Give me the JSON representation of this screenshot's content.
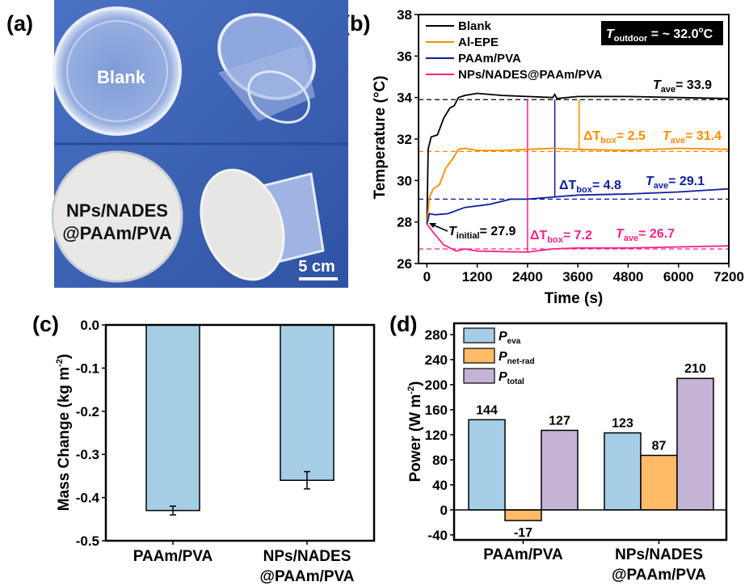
{
  "panel_labels": {
    "a": "(a)",
    "b": "(b)",
    "c": "(c)",
    "d": "(d)"
  },
  "photo": {
    "label_blank": "Blank",
    "label_coated_1": "NPs/NADES",
    "label_coated_2": "@PAAm/PVA",
    "scale_bar": "5 cm",
    "background_color": "#3a5fb4"
  },
  "chart_data": [
    {
      "panel": "b",
      "type": "line",
      "xlabel": "Time (s)",
      "ylabel": "Temperature (°C)",
      "xlim": [
        -200,
        7200
      ],
      "ylim": [
        26,
        38
      ],
      "xticks": [
        0,
        1200,
        2400,
        3600,
        4800,
        6000,
        7200
      ],
      "yticks": [
        26,
        28,
        30,
        32,
        34,
        36,
        38
      ],
      "legend_position": "top-left",
      "inset_box": {
        "T": "T",
        "sub": "outdoor",
        "text": " = ~ 32.0",
        "sup": "o",
        "unit": "C"
      },
      "series": [
        {
          "name": "Blank",
          "color": "#000000",
          "x": [
            0,
            30,
            100,
            250,
            400,
            550,
            650,
            750,
            900,
            1200,
            1800,
            2400,
            3000,
            3050,
            3100,
            3600,
            4800,
            6000,
            7200
          ],
          "y": [
            27.9,
            31.5,
            32.1,
            32.2,
            33.0,
            33.5,
            33.6,
            34.0,
            34.1,
            34.2,
            34.1,
            34.05,
            34.0,
            34.15,
            33.95,
            34.05,
            34.05,
            34.0,
            33.95
          ]
        },
        {
          "name": "Al-EPE",
          "color": "#ff8c00",
          "x": [
            0,
            60,
            150,
            300,
            450,
            600,
            750,
            900,
            1200,
            1800,
            2400,
            3000,
            3600,
            4800,
            6000,
            7200
          ],
          "y": [
            27.9,
            29.2,
            29.6,
            29.8,
            30.6,
            31.0,
            31.5,
            31.55,
            31.45,
            31.45,
            31.5,
            31.55,
            31.5,
            31.45,
            31.55,
            31.5
          ]
        },
        {
          "name": "PAAm/PVA",
          "color": "#0b1fa0",
          "x": [
            0,
            60,
            200,
            500,
            900,
            1500,
            2000,
            2400,
            3000,
            3600,
            4800,
            6000,
            7200
          ],
          "y": [
            27.9,
            28.4,
            28.35,
            28.4,
            28.7,
            28.85,
            29.1,
            29.1,
            29.2,
            29.3,
            29.35,
            29.45,
            29.6
          ]
        },
        {
          "name": "NPs/NADES@PAAm/PVA",
          "color": "#ff1f8a",
          "x": [
            0,
            150,
            400,
            700,
            900,
            1200,
            2400,
            3000,
            3600,
            4800,
            6000,
            7200
          ],
          "y": [
            27.9,
            27.5,
            26.9,
            26.6,
            26.7,
            26.6,
            26.55,
            26.7,
            26.75,
            26.75,
            26.8,
            26.85
          ]
        }
      ],
      "average_lines": [
        {
          "series": "Blank",
          "value": 33.9,
          "color": "#000000"
        },
        {
          "series": "Al-EPE",
          "value": 31.4,
          "color": "#ff8c00"
        },
        {
          "series": "PAAm/PVA",
          "value": 29.1,
          "color": "#0b1fa0"
        },
        {
          "series": "NPs/NADES@PAAm/PVA",
          "value": 26.7,
          "color": "#ff1f8a"
        }
      ],
      "delta_markers": [
        {
          "x": 3630,
          "from": 31.45,
          "to": 33.9,
          "color": "#ff8c00"
        },
        {
          "x": 3050,
          "from": 29.2,
          "to": 33.9,
          "color": "#0b1fa0"
        },
        {
          "x": 2400,
          "from": 26.55,
          "to": 33.9,
          "color": "#ff1f8a"
        }
      ],
      "annotations": {
        "blank_ave": {
          "T": "T",
          "sub": "ave",
          "text": "= 33.9"
        },
        "epe_delta": {
          "T": "ΔT",
          "sub": "box",
          "text": "= 2.5"
        },
        "epe_ave": {
          "T": "T",
          "sub": "ave",
          "text": "= 31.4"
        },
        "paam_delta": {
          "T": "ΔT",
          "sub": "box",
          "text": "= 4.8"
        },
        "paam_ave": {
          "T": "T",
          "sub": "ave",
          "text": "= 29.1"
        },
        "initial": {
          "T": "T",
          "sub": "initial",
          "text": "= 27.9"
        },
        "nps_delta": {
          "T": "ΔT",
          "sub": "box",
          "text": "= 7.2"
        },
        "nps_ave": {
          "T": "T",
          "sub": "ave",
          "text": "= 26.7"
        }
      }
    },
    {
      "panel": "c",
      "type": "bar",
      "ylabel": "Mass Change (kg m",
      "ylabel_sup": "-2",
      "ylabel_end": ")",
      "categories": [
        [
          "PAAm/PVA"
        ],
        [
          "NPs/NADES",
          "@PAAm/PVA"
        ]
      ],
      "values": [
        -0.43,
        -0.36
      ],
      "errors": [
        0.01,
        0.02
      ],
      "ylim": [
        -0.5,
        0.0
      ],
      "yticks": [
        "0.0",
        "-0.1",
        "-0.2",
        "-0.3",
        "-0.4",
        "-0.5"
      ],
      "color": "#a6cde6"
    },
    {
      "panel": "d",
      "type": "bar",
      "ylabel": "Power (W m",
      "ylabel_sup": "-2",
      "ylabel_end": ")",
      "categories": [
        [
          "PAAm/PVA"
        ],
        [
          "NPs/NADES",
          "@PAAm/PVA"
        ]
      ],
      "ylim": [
        -48,
        298
      ],
      "yticks": [
        -40,
        0,
        40,
        80,
        120,
        160,
        200,
        240,
        280
      ],
      "legend_position": "top-left",
      "series": [
        {
          "name": "P",
          "sub": "eva",
          "color": "#a6cde6",
          "values": [
            144,
            123
          ]
        },
        {
          "name": "P",
          "sub": "net-rad",
          "color": "#ffbb66",
          "values": [
            -17,
            87
          ]
        },
        {
          "name": "P",
          "sub": "total",
          "color": "#c5b3d6",
          "values": [
            127,
            210
          ]
        }
      ]
    }
  ]
}
